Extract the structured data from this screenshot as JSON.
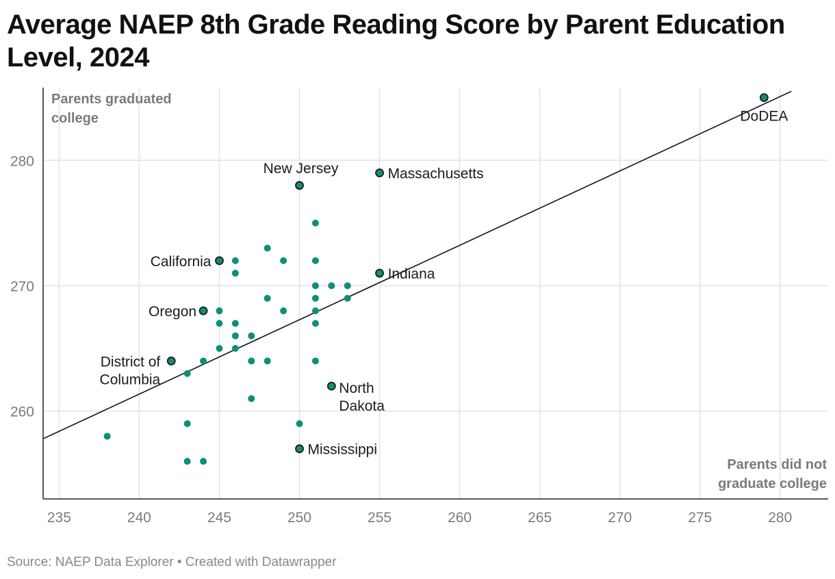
{
  "title": "Average NAEP 8th Grade Reading Score by Parent Education Level, 2024",
  "source": "Source: NAEP Data Explorer • Created with Datawrapper",
  "colors": {
    "point": "#0e8f78",
    "highlight_stroke": "#1a1a1a",
    "grid": "#e3e3e3",
    "axis": "#222222",
    "trend": "#111111"
  },
  "chart_data": {
    "type": "scatter",
    "xlabel": "",
    "ylabel": "",
    "xlim": [
      234,
      283
    ],
    "ylim": [
      253,
      285.8
    ],
    "x_ticks": [
      "235",
      "240",
      "245",
      "250",
      "255",
      "260",
      "265",
      "270",
      "275",
      "280"
    ],
    "y_ticks": [
      "260",
      "270",
      "280"
    ],
    "corner_labels": {
      "top_left": [
        "Parents graduated",
        "college"
      ],
      "bottom_right": [
        "Parents did not",
        "graduate college"
      ]
    },
    "trend_line": {
      "x": [
        234,
        280.7
      ],
      "y": [
        257.8,
        285.5
      ]
    },
    "points": [
      {
        "x": 238,
        "y": 258
      },
      {
        "x": 243,
        "y": 263
      },
      {
        "x": 243,
        "y": 259
      },
      {
        "x": 243,
        "y": 256
      },
      {
        "x": 244,
        "y": 264
      },
      {
        "x": 244,
        "y": 256
      },
      {
        "x": 245,
        "y": 268
      },
      {
        "x": 245,
        "y": 267
      },
      {
        "x": 245,
        "y": 265
      },
      {
        "x": 246,
        "y": 272
      },
      {
        "x": 246,
        "y": 271
      },
      {
        "x": 246,
        "y": 267
      },
      {
        "x": 246,
        "y": 266
      },
      {
        "x": 246,
        "y": 265
      },
      {
        "x": 247,
        "y": 266
      },
      {
        "x": 247,
        "y": 264
      },
      {
        "x": 247,
        "y": 261
      },
      {
        "x": 248,
        "y": 273
      },
      {
        "x": 248,
        "y": 269
      },
      {
        "x": 248,
        "y": 264
      },
      {
        "x": 249,
        "y": 272
      },
      {
        "x": 249,
        "y": 268
      },
      {
        "x": 250,
        "y": 259
      },
      {
        "x": 251,
        "y": 275
      },
      {
        "x": 251,
        "y": 272
      },
      {
        "x": 251,
        "y": 270
      },
      {
        "x": 251,
        "y": 269
      },
      {
        "x": 251,
        "y": 268
      },
      {
        "x": 251,
        "y": 267
      },
      {
        "x": 251,
        "y": 264
      },
      {
        "x": 252,
        "y": 270
      },
      {
        "x": 253,
        "y": 270
      },
      {
        "x": 253,
        "y": 269
      }
    ],
    "highlighted": [
      {
        "name": "DoDEA",
        "label_lines": [
          "DoDEA"
        ],
        "x": 279,
        "y": 285
      },
      {
        "name": "Massachusetts",
        "label_lines": [
          "Massachusetts"
        ],
        "x": 255,
        "y": 279
      },
      {
        "name": "New Jersey",
        "label_lines": [
          "New Jersey"
        ],
        "x": 250,
        "y": 278
      },
      {
        "name": "California",
        "label_lines": [
          "California"
        ],
        "x": 245,
        "y": 272
      },
      {
        "name": "Indiana",
        "label_lines": [
          "Indiana"
        ],
        "x": 255,
        "y": 271
      },
      {
        "name": "Oregon",
        "label_lines": [
          "Oregon"
        ],
        "x": 244,
        "y": 268
      },
      {
        "name": "District of Columbia",
        "label_lines": [
          "District of",
          "Columbia"
        ],
        "x": 242,
        "y": 264
      },
      {
        "name": "North Dakota",
        "label_lines": [
          "North",
          "Dakota"
        ],
        "x": 252,
        "y": 262
      },
      {
        "name": "Mississippi",
        "label_lines": [
          "Mississippi"
        ],
        "x": 250,
        "y": 257
      }
    ]
  }
}
